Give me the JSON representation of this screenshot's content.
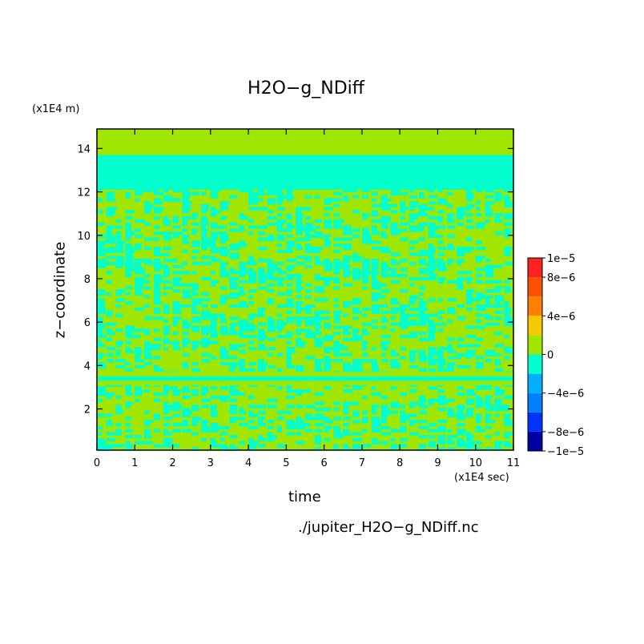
{
  "chart_data": {
    "type": "heatmap",
    "title": "H2O−g_NDiff",
    "xlabel": "time",
    "ylabel": "z−coordinate",
    "x_unit_label": "(x1E4 sec)",
    "y_unit_label": "(x1E4 m)",
    "xlim": [
      0,
      11
    ],
    "ylim": [
      0.1,
      14.9
    ],
    "x_ticks": [
      "0",
      "1",
      "2",
      "3",
      "4",
      "5",
      "6",
      "7",
      "8",
      "9",
      "10",
      "11"
    ],
    "x_tick_values": [
      0,
      1,
      2,
      3,
      4,
      5,
      6,
      7,
      8,
      9,
      10,
      11
    ],
    "y_ticks": [
      "2",
      "4",
      "6",
      "8",
      "10",
      "12",
      "14"
    ],
    "y_tick_values": [
      2,
      4,
      6,
      8,
      10,
      12,
      14
    ],
    "colorbar": {
      "range": [
        -1e-05,
        1e-05
      ],
      "tick_labels": [
        "1e−5",
        "8e−6",
        "4e−6",
        "0",
        "−4e−6",
        "−8e−6",
        "−1e−5"
      ],
      "tick_values": [
        1e-05,
        8e-06,
        4e-06,
        0,
        -4e-06,
        -8e-06,
        -1e-05
      ],
      "levels": [
        {
          "min": -1e-05,
          "max": -8e-06,
          "color": "#0000a0"
        },
        {
          "min": -8e-06,
          "max": -6e-06,
          "color": "#0033ff"
        },
        {
          "min": -6e-06,
          "max": -4e-06,
          "color": "#0080ff"
        },
        {
          "min": -4e-06,
          "max": -2e-06,
          "color": "#00b0ff"
        },
        {
          "min": -2e-06,
          "max": 0,
          "color": "#00ffcc"
        },
        {
          "min": 0,
          "max": 2e-06,
          "color": "#a0e600"
        },
        {
          "min": 2e-06,
          "max": 4e-06,
          "color": "#f5c800"
        },
        {
          "min": 4e-06,
          "max": 6e-06,
          "color": "#ff8000"
        },
        {
          "min": 6e-06,
          "max": 8e-06,
          "color": "#ff5000"
        },
        {
          "min": 8e-06,
          "max": 1e-05,
          "color": "#ff2020"
        }
      ]
    },
    "bands": [
      {
        "z0": 14.3,
        "z1": 14.9,
        "level": "positive"
      },
      {
        "z0": 13.7,
        "z1": 14.3,
        "level": "positive"
      },
      {
        "z0": 12.1,
        "z1": 13.7,
        "level": "negative"
      },
      {
        "z0": 3.5,
        "z1": 3.7,
        "level": "positive"
      },
      {
        "z0": 3.3,
        "z1": 3.5,
        "level": "negative"
      },
      {
        "z0": 3.1,
        "z1": 3.3,
        "level": "positive"
      }
    ],
    "source_file": "./jupiter_H2O−g_NDiff.nc"
  }
}
